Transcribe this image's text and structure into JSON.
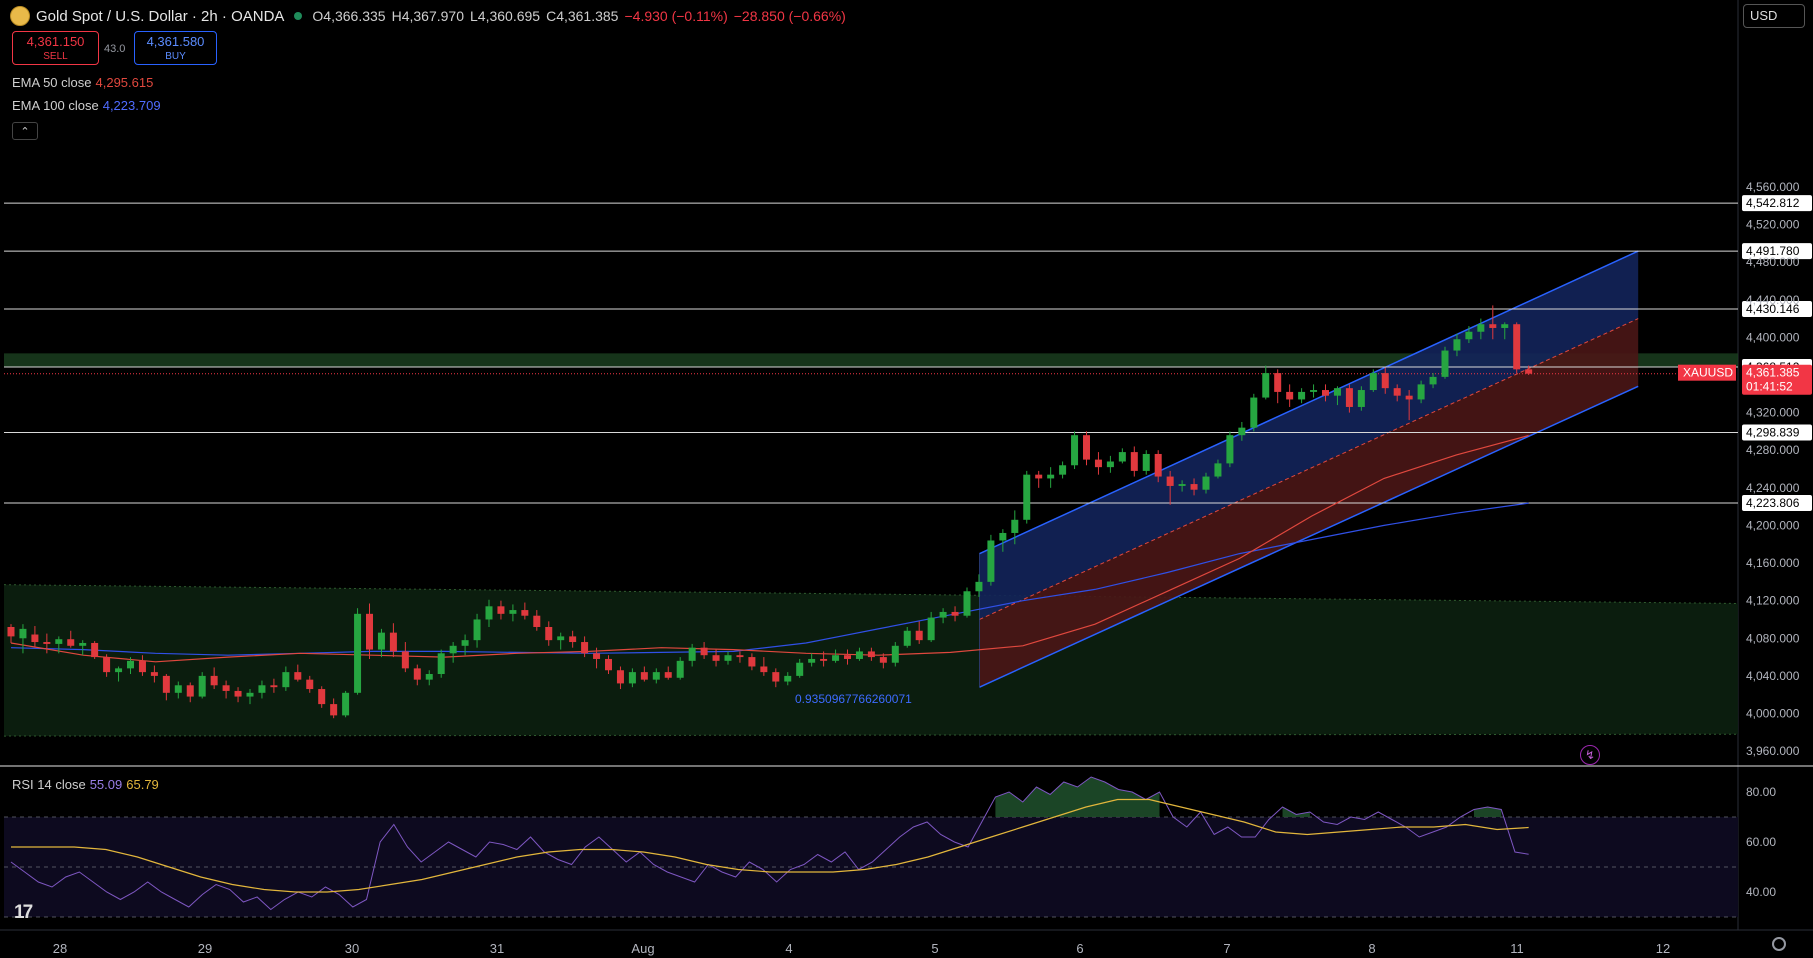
{
  "header": {
    "symbol_title": "Gold Spot / U.S. Dollar · 2h · OANDA",
    "open": "O4,366.335",
    "high": "H4,367.970",
    "low": "L4,360.695",
    "close": "C4,361.385",
    "change": "−4.930 (−0.11%)",
    "change2": "−28.850 (−0.66%)"
  },
  "trade": {
    "sell_price": "4,361.150",
    "sell_label": "SELL",
    "spread": "43.0",
    "buy_price": "4,361.580",
    "buy_label": "BUY"
  },
  "indicators": {
    "ema50_label": "EMA 50 close",
    "ema50_value": "4,295.615",
    "ema100_label": "EMA 100 close",
    "ema100_value": "4,223.709",
    "rsi_label": "RSI 14 close",
    "rsi_value": "55.09",
    "rsi_ma_value": "65.79"
  },
  "currency_button": "USD",
  "channel_annotation": "0.9350967766260071",
  "symbol_tag": "XAUUSD",
  "countdown": "01:41:52",
  "colors": {
    "up": "#26a641",
    "down": "#e0393e",
    "ema50": "#e0483e",
    "ema100": "#3050e6",
    "channel": "#2962ff",
    "rsi": "#7e57c2",
    "rsi_ma": "#e2b63c",
    "price": "#f23645"
  },
  "chart_data": {
    "type": "candlestick",
    "price_axis": {
      "ticks": [
        3960,
        4000,
        4040,
        4080,
        4120,
        4160,
        4200,
        4240,
        4280,
        4320,
        4360,
        4400,
        4440,
        4480,
        4520,
        4560
      ],
      "labels": [
        "3,960.000",
        "4,000.000",
        "4,040.000",
        "4,080.000",
        "4,120.000",
        "4,160.000",
        "4,200.000",
        "4,240.000",
        "4,280.000",
        "4,320.000",
        "4,360.000",
        "4,400.000",
        "4,440.000",
        "4,480.000",
        "4,520.000",
        "4,560.000"
      ]
    },
    "time_axis": [
      "28",
      "29",
      "30",
      "31",
      "Aug",
      "4",
      "5",
      "6",
      "7",
      "8",
      "11",
      "12"
    ],
    "horizontal_levels": [
      {
        "value": 4542.812,
        "label": "4,542.812"
      },
      {
        "value": 4491.78,
        "label": "4,491.780"
      },
      {
        "value": 4430.146,
        "label": "4,430.146"
      },
      {
        "value": 4368.512,
        "label": "4,368.512"
      },
      {
        "value": 4298.839,
        "label": "4,298.839"
      },
      {
        "value": 4223.806,
        "label": "4,223.806"
      }
    ],
    "last_price": {
      "value": 4361.385,
      "label": "4,361.385"
    },
    "support_zone": [
      4368.512,
      4383
    ],
    "bars_x": [
      5,
      79,
      90,
      300,
      311,
      530,
      541,
      690,
      700,
      920,
      933,
      1147,
      1158,
      1373,
      1384
    ],
    "candles": [
      [
        4092,
        4095,
        4075,
        4082
      ],
      [
        4080,
        4095,
        4064,
        4090
      ],
      [
        4084,
        4093,
        4071,
        4076
      ],
      [
        4076,
        4085,
        4064,
        4074
      ],
      [
        4074,
        4082,
        4064,
        4079
      ],
      [
        4079,
        4088,
        4070,
        4072
      ],
      [
        4072,
        4078,
        4062,
        4075
      ],
      [
        4075,
        4077,
        4058,
        4060
      ],
      [
        4060,
        4063,
        4039,
        4044
      ],
      [
        4044,
        4050,
        4034,
        4048
      ],
      [
        4048,
        4060,
        4042,
        4056
      ],
      [
        4056,
        4062,
        4040,
        4044
      ],
      [
        4044,
        4051,
        4033,
        4040
      ],
      [
        4040,
        4042,
        4014,
        4022
      ],
      [
        4022,
        4034,
        4016,
        4030
      ],
      [
        4030,
        4033,
        4012,
        4018
      ],
      [
        4018,
        4044,
        4016,
        4040
      ],
      [
        4040,
        4049,
        4026,
        4030
      ],
      [
        4030,
        4035,
        4016,
        4024
      ],
      [
        4024,
        4028,
        4012,
        4018
      ],
      [
        4018,
        4026,
        4010,
        4022
      ],
      [
        4022,
        4035,
        4016,
        4030
      ],
      [
        4030,
        4037,
        4022,
        4028
      ],
      [
        4028,
        4050,
        4024,
        4044
      ],
      [
        4044,
        4052,
        4034,
        4036
      ],
      [
        4036,
        4040,
        4022,
        4026
      ],
      [
        4026,
        4029,
        4006,
        4010
      ],
      [
        4010,
        4016,
        3995,
        3998
      ],
      [
        3998,
        4024,
        3996,
        4022
      ],
      [
        4022,
        4112,
        4020,
        4106
      ],
      [
        4106,
        4117,
        4058,
        4068
      ],
      [
        4068,
        4090,
        4060,
        4086
      ],
      [
        4086,
        4096,
        4060,
        4066
      ],
      [
        4066,
        4076,
        4044,
        4048
      ],
      [
        4048,
        4052,
        4030,
        4036
      ],
      [
        4036,
        4046,
        4030,
        4042
      ],
      [
        4042,
        4068,
        4038,
        4064
      ],
      [
        4064,
        4076,
        4054,
        4072
      ],
      [
        4072,
        4084,
        4062,
        4078
      ],
      [
        4078,
        4106,
        4070,
        4100
      ],
      [
        4100,
        4121,
        4092,
        4114
      ],
      [
        4114,
        4120,
        4100,
        4106
      ],
      [
        4106,
        4116,
        4098,
        4110
      ],
      [
        4110,
        4118,
        4100,
        4104
      ],
      [
        4104,
        4110,
        4088,
        4092
      ],
      [
        4092,
        4098,
        4072,
        4078
      ],
      [
        4078,
        4086,
        4068,
        4082
      ],
      [
        4082,
        4088,
        4070,
        4076
      ],
      [
        4076,
        4082,
        4060,
        4064
      ],
      [
        4064,
        4070,
        4048,
        4058
      ],
      [
        4058,
        4062,
        4042,
        4046
      ],
      [
        4046,
        4050,
        4026,
        4032
      ],
      [
        4032,
        4048,
        4028,
        4044
      ],
      [
        4044,
        4050,
        4034,
        4036
      ],
      [
        4036,
        4048,
        4032,
        4044
      ],
      [
        4044,
        4050,
        4036,
        4038
      ],
      [
        4038,
        4060,
        4036,
        4056
      ],
      [
        4056,
        4074,
        4050,
        4070
      ],
      [
        4070,
        4076,
        4058,
        4062
      ],
      [
        4062,
        4068,
        4050,
        4056
      ],
      [
        4056,
        4066,
        4052,
        4062
      ],
      [
        4062,
        4066,
        4054,
        4060
      ],
      [
        4060,
        4064,
        4046,
        4050
      ],
      [
        4050,
        4060,
        4040,
        4044
      ],
      [
        4044,
        4048,
        4028,
        4034
      ],
      [
        4034,
        4044,
        4030,
        4040
      ],
      [
        4040,
        4058,
        4038,
        4054
      ],
      [
        4054,
        4064,
        4050,
        4058
      ],
      [
        4058,
        4066,
        4050,
        4056
      ],
      [
        4056,
        4068,
        4054,
        4062
      ],
      [
        4062,
        4068,
        4052,
        4058
      ],
      [
        4058,
        4070,
        4056,
        4066
      ],
      [
        4066,
        4070,
        4056,
        4060
      ],
      [
        4060,
        4064,
        4048,
        4054
      ],
      [
        4054,
        4076,
        4050,
        4072
      ],
      [
        4072,
        4092,
        4070,
        4088
      ],
      [
        4088,
        4098,
        4074,
        4078
      ],
      [
        4078,
        4108,
        4076,
        4102
      ],
      [
        4102,
        4112,
        4096,
        4108
      ],
      [
        4108,
        4114,
        4098,
        4104
      ],
      [
        4104,
        4134,
        4102,
        4130
      ],
      [
        4130,
        4148,
        4124,
        4140
      ],
      [
        4140,
        4190,
        4136,
        4184
      ],
      [
        4184,
        4196,
        4172,
        4192
      ],
      [
        4192,
        4216,
        4180,
        4206
      ],
      [
        4206,
        4258,
        4202,
        4254
      ],
      [
        4254,
        4258,
        4240,
        4250
      ],
      [
        4250,
        4262,
        4240,
        4254
      ],
      [
        4254,
        4268,
        4250,
        4264
      ],
      [
        4264,
        4300,
        4260,
        4296
      ],
      [
        4296,
        4300,
        4264,
        4270
      ],
      [
        4270,
        4278,
        4254,
        4262
      ],
      [
        4262,
        4274,
        4256,
        4268
      ],
      [
        4268,
        4282,
        4266,
        4278
      ],
      [
        4278,
        4284,
        4252,
        4258
      ],
      [
        4258,
        4280,
        4254,
        4276
      ],
      [
        4276,
        4280,
        4246,
        4252
      ],
      [
        4252,
        4258,
        4222,
        4242
      ],
      [
        4242,
        4248,
        4236,
        4244
      ],
      [
        4244,
        4250,
        4232,
        4238
      ],
      [
        4238,
        4256,
        4234,
        4252
      ],
      [
        4252,
        4270,
        4250,
        4266
      ],
      [
        4266,
        4300,
        4262,
        4296
      ],
      [
        4296,
        4310,
        4290,
        4304
      ],
      [
        4304,
        4340,
        4300,
        4336
      ],
      [
        4336,
        4370,
        4334,
        4362
      ],
      [
        4362,
        4366,
        4330,
        4342
      ],
      [
        4342,
        4350,
        4326,
        4334
      ],
      [
        4334,
        4346,
        4330,
        4342
      ],
      [
        4342,
        4350,
        4336,
        4344
      ],
      [
        4344,
        4350,
        4332,
        4338
      ],
      [
        4338,
        4348,
        4328,
        4346
      ],
      [
        4346,
        4350,
        4320,
        4326
      ],
      [
        4326,
        4348,
        4322,
        4344
      ],
      [
        4344,
        4366,
        4342,
        4362
      ],
      [
        4362,
        4368,
        4340,
        4346
      ],
      [
        4346,
        4350,
        4332,
        4338
      ],
      [
        4338,
        4344,
        4312,
        4334
      ],
      [
        4334,
        4354,
        4330,
        4350
      ],
      [
        4350,
        4362,
        4346,
        4358
      ],
      [
        4358,
        4390,
        4356,
        4386
      ],
      [
        4386,
        4404,
        4380,
        4398
      ],
      [
        4398,
        4412,
        4394,
        4406
      ],
      [
        4406,
        4420,
        4398,
        4414
      ],
      [
        4414,
        4434,
        4398,
        4410
      ],
      [
        4410,
        4416,
        4398,
        4414
      ],
      [
        4414,
        4416,
        4362,
        4366
      ],
      [
        4366,
        4370,
        4360,
        4361.385
      ]
    ],
    "ema50": [
      4075,
      4062,
      4055,
      4060,
      4064,
      4062,
      4060,
      4064,
      4066,
      4070,
      4068,
      4064,
      4062,
      4065,
      4072,
      4095,
      4130,
      4165,
      4210,
      4250,
      4275,
      4295.615
    ],
    "ema100": [
      4070,
      4068,
      4064,
      4062,
      4064,
      4066,
      4066,
      4065,
      4064,
      4065,
      4066,
      4075,
      4090,
      4105,
      4120,
      4132,
      4150,
      4170,
      4185,
      4200,
      4213,
      4223.709
    ],
    "regression_channel": {
      "start_index": 81,
      "end_index": 136,
      "upper": [
        4170,
        4491.78
      ],
      "middle": [
        4100,
        4420
      ],
      "lower": [
        4028,
        4348
      ]
    },
    "upper_green_boundary": [
      4122,
      4122
    ],
    "lower_green_boundary": [
      3990,
      3980
    ],
    "rsi": {
      "range": [
        30,
        90
      ],
      "levels": [
        70,
        50,
        30
      ],
      "ticks": [
        40,
        60,
        80
      ],
      "tick_labels": [
        "40.00",
        "60.00",
        "80.00"
      ],
      "values": [
        52,
        48,
        44,
        42,
        46,
        48,
        44,
        40,
        37,
        40,
        44,
        40,
        37,
        34,
        39,
        43,
        41,
        36,
        38,
        33,
        37,
        40,
        38,
        42,
        39,
        34,
        37,
        60,
        67,
        58,
        52,
        56,
        60,
        57,
        54,
        60,
        59,
        57,
        62,
        56,
        53,
        51,
        58,
        62,
        57,
        52,
        56,
        51,
        48,
        46,
        44,
        51,
        48,
        46,
        52,
        49,
        44,
        49,
        51,
        55,
        52,
        56,
        49,
        52,
        57,
        62,
        66,
        68,
        63,
        60,
        58,
        68,
        78,
        80,
        76,
        82,
        79,
        84,
        82,
        86,
        84,
        81,
        80,
        77,
        80,
        70,
        66,
        72,
        63,
        66,
        62,
        62,
        69,
        74,
        71,
        72,
        68,
        67,
        70,
        69,
        72,
        69,
        66,
        62,
        64,
        66,
        70,
        73,
        74,
        73,
        56,
        55.09
      ],
      "ma_values": [
        58,
        58,
        58,
        57,
        54,
        50,
        46,
        43,
        41,
        40,
        40,
        41,
        43,
        45,
        48,
        51,
        54,
        56,
        57,
        57,
        56,
        54,
        51,
        49,
        48,
        48,
        48,
        49,
        51,
        54,
        58,
        62,
        66,
        70,
        74,
        77,
        77,
        74,
        71,
        68,
        64,
        63,
        64,
        65,
        66,
        66,
        67,
        65,
        65.79
      ]
    }
  }
}
